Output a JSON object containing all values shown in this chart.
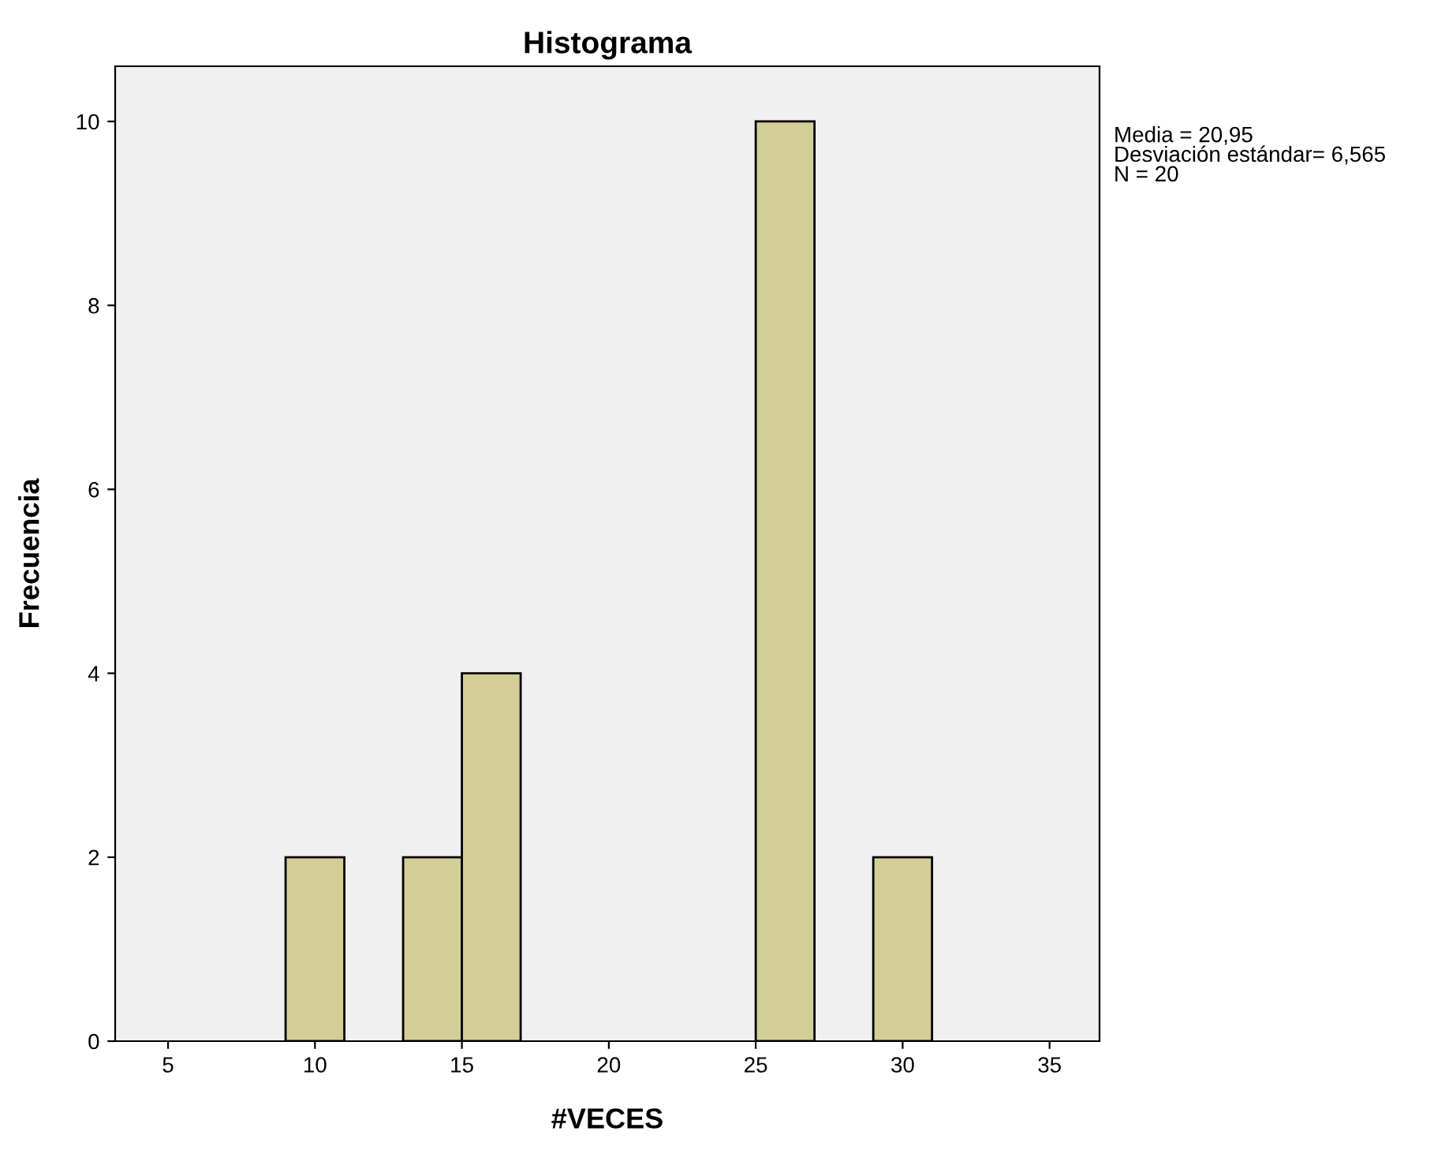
{
  "chart_data": {
    "type": "histogram",
    "title": "Histograma",
    "xlabel": "#VECES",
    "ylabel": "Frecuencia",
    "bins": [
      9,
      11,
      13,
      15,
      17,
      19,
      21,
      23,
      25,
      27,
      29,
      31
    ],
    "values": [
      2,
      0,
      2,
      4,
      0,
      0,
      0,
      0,
      10,
      0,
      2
    ],
    "color": "#d3ce97",
    "xlim": [
      3.2,
      36.7
    ],
    "xticks": [
      5,
      10,
      15,
      20,
      25,
      30,
      35
    ],
    "ylim": [
      0,
      10.6
    ],
    "yticks": [
      0,
      2,
      4,
      6,
      8,
      10
    ],
    "grid": false,
    "legend": false,
    "annotations": [
      "Media = 20,95\nDesviación estándar= 6,565\nN = 20"
    ]
  }
}
